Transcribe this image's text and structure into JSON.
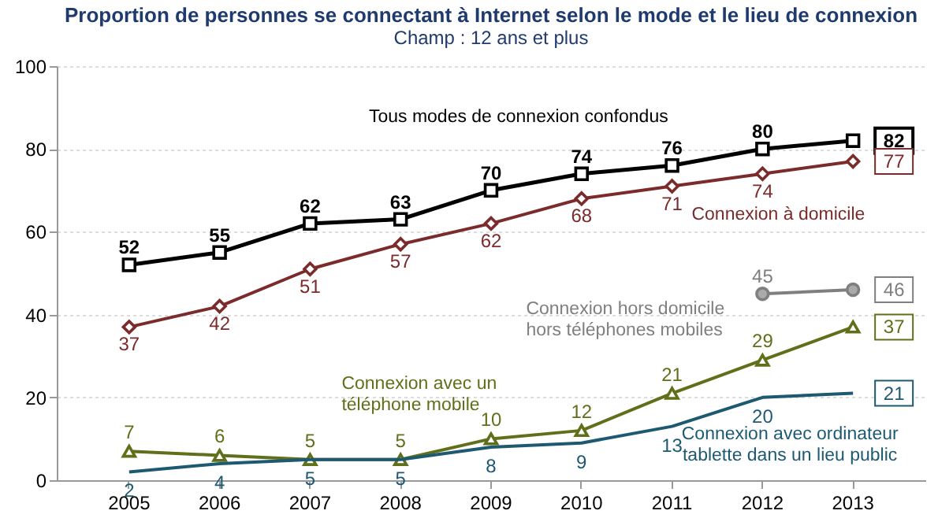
{
  "chart_data": {
    "type": "line",
    "title": "Proportion de personnes se connectant à Internet selon le mode et le lieu de connexion",
    "subtitle": "Champ : 12 ans et plus",
    "categories": [
      "2005",
      "2006",
      "2007",
      "2008",
      "2009",
      "2010",
      "2011",
      "2012",
      "2013"
    ],
    "series": [
      {
        "name": "Tous modes de connexion confondus",
        "color": "#000000",
        "marker": "square",
        "values": [
          52,
          55,
          62,
          63,
          70,
          74,
          76,
          80,
          82
        ]
      },
      {
        "name": "Connexion à domicile",
        "color": "#7b2b2b",
        "marker": "diamond",
        "values": [
          37,
          42,
          51,
          57,
          62,
          68,
          71,
          74,
          77
        ]
      },
      {
        "name": "Connexion hors domicile\nhors téléphones mobiles",
        "color": "#7f7f7f",
        "marker": "circle",
        "values": [
          null,
          null,
          null,
          null,
          null,
          null,
          null,
          45,
          46
        ]
      },
      {
        "name": "Connexion avec un\ntéléphone  mobile",
        "color": "#5f6f1a",
        "marker": "triangle",
        "values": [
          7,
          6,
          5,
          5,
          10,
          12,
          21,
          29,
          37
        ]
      },
      {
        "name": "Connexion avec ordinateur\ntablette dans un lieu public",
        "color": "#1d5a72",
        "marker": "none",
        "values": [
          2,
          4,
          5,
          5,
          8,
          9,
          13,
          20,
          21
        ]
      }
    ],
    "ylim": [
      0,
      100
    ],
    "yticks": [
      0,
      20,
      40,
      60,
      80,
      100
    ],
    "grid": "y",
    "data_labels": true
  }
}
